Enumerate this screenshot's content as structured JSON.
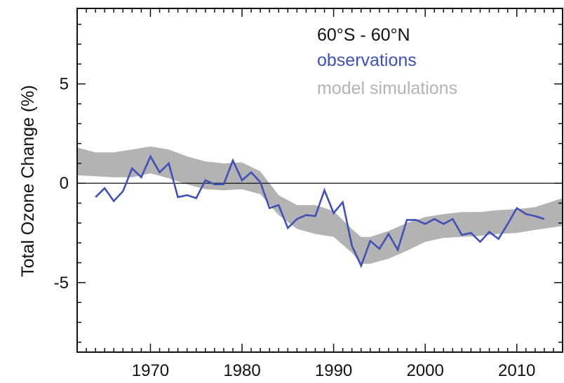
{
  "chart_data": {
    "type": "line",
    "title": "",
    "xlabel": "",
    "ylabel": "Total Ozone Change (%)",
    "xlim": [
      1962,
      2015
    ],
    "ylim": [
      -8.5,
      8.8
    ],
    "x_ticks": [
      1970,
      1980,
      1990,
      2000,
      2010
    ],
    "y_ticks": [
      5,
      0,
      -5
    ],
    "y_tick_labels": [
      "5",
      "0",
      "-5"
    ],
    "x_tick_labels": [
      "1970",
      "1980",
      "1990",
      "2000",
      "2010"
    ],
    "zero_line": 0,
    "grid": false,
    "legend": {
      "position": "top-right",
      "region_label": "60°S - 60°N",
      "entries": [
        {
          "label": "observations",
          "color": "#3f51b5"
        },
        {
          "label": "model simulations",
          "color": "#b3b3b3"
        }
      ]
    },
    "colors": {
      "observations": "#3f51b5",
      "model_band": "#b3b3b3",
      "axis": "#111111",
      "region_label": "#111111"
    },
    "series": [
      {
        "name": "observations",
        "x": [
          1964,
          1965,
          1966,
          1967,
          1968,
          1969,
          1970,
          1971,
          1972,
          1973,
          1974,
          1975,
          1976,
          1977,
          1978,
          1979,
          1980,
          1981,
          1982,
          1983,
          1984,
          1985,
          1986,
          1987,
          1988,
          1989,
          1990,
          1991,
          1992,
          1993,
          1994,
          1995,
          1996,
          1997,
          1998,
          1999,
          2000,
          2001,
          2002,
          2003,
          2004,
          2005,
          2006,
          2007,
          2008,
          2009,
          2010,
          2011,
          2012,
          2013
        ],
        "y": [
          -0.7,
          -0.25,
          -0.9,
          -0.4,
          0.75,
          0.3,
          1.35,
          0.55,
          1.0,
          -0.7,
          -0.6,
          -0.75,
          0.15,
          -0.05,
          -0.05,
          1.15,
          0.15,
          0.55,
          0.05,
          -1.25,
          -1.1,
          -2.25,
          -1.8,
          -1.6,
          -1.65,
          -0.35,
          -1.5,
          -0.95,
          -3.15,
          -4.15,
          -2.9,
          -3.3,
          -2.55,
          -3.35,
          -1.85,
          -1.85,
          -2.05,
          -1.8,
          -2.05,
          -1.8,
          -2.6,
          -2.5,
          -2.95,
          -2.45,
          -2.8,
          -2.05,
          -1.25,
          -1.55,
          -1.65,
          -1.8
        ]
      },
      {
        "name": "model simulations",
        "x": [
          1962,
          1964,
          1966,
          1968,
          1970,
          1972,
          1974,
          1976,
          1978,
          1980,
          1982,
          1984,
          1986,
          1988,
          1990,
          1992,
          1993,
          1994,
          1996,
          1998,
          2000,
          2002,
          2004,
          2006,
          2008,
          2010,
          2012,
          2015
        ],
        "upper": [
          1.8,
          1.55,
          1.55,
          1.7,
          1.85,
          1.7,
          1.35,
          1.1,
          1.0,
          1.05,
          0.6,
          -0.6,
          -1.1,
          -1.1,
          -1.4,
          -2.3,
          -2.7,
          -2.7,
          -2.4,
          -2.0,
          -1.7,
          -1.55,
          -1.45,
          -1.45,
          -1.35,
          -1.3,
          -1.2,
          -0.75
        ],
        "lower": [
          0.4,
          0.35,
          0.3,
          0.3,
          0.5,
          0.25,
          -0.05,
          -0.3,
          -0.35,
          -0.3,
          -0.55,
          -1.6,
          -2.3,
          -2.55,
          -2.7,
          -3.5,
          -4.05,
          -4.05,
          -3.8,
          -3.4,
          -2.95,
          -2.75,
          -2.7,
          -2.65,
          -2.55,
          -2.5,
          -2.35,
          -2.15
        ]
      }
    ]
  }
}
